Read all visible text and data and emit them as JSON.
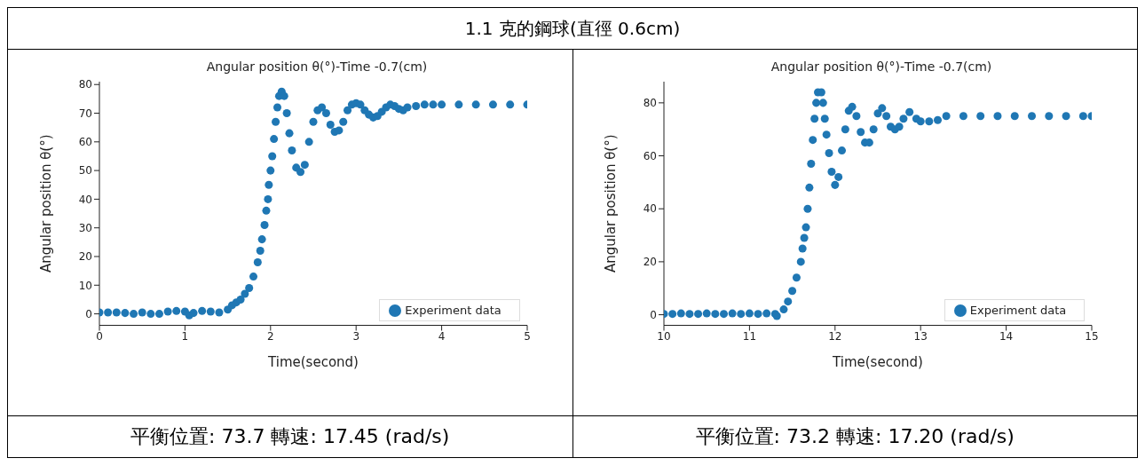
{
  "chart_data": [
    {
      "type": "scatter",
      "title": "Angular position θ(°)-Time -0.7(cm)",
      "xlabel": "Time(second)",
      "ylabel": "Angular position θ(°)",
      "annotations": [
        "1.1 克的鋼球(直徑 0.6cm)",
        "平衡位置: 73.7  轉速: 17.45 (rad/s)"
      ],
      "xlim": [
        0,
        5
      ],
      "ylim": [
        -4,
        81
      ],
      "xticks": [
        0,
        1,
        2,
        3,
        4,
        5
      ],
      "yticks": [
        0,
        10,
        20,
        30,
        40,
        50,
        60,
        70,
        80
      ],
      "legend": "bottom right",
      "marker": "circle",
      "series": [
        {
          "name": "Experiment data",
          "color": "#1f77b4",
          "x": [
            0,
            0.1,
            0.2,
            0.3,
            0.4,
            0.5,
            0.6,
            0.7,
            0.8,
            0.9,
            1.0,
            1.05,
            1.1,
            1.2,
            1.3,
            1.4,
            1.5,
            1.55,
            1.6,
            1.65,
            1.7,
            1.75,
            1.8,
            1.85,
            1.88,
            1.9,
            1.93,
            1.95,
            1.97,
            1.98,
            2.0,
            2.02,
            2.04,
            2.06,
            2.08,
            2.1,
            2.13,
            2.16,
            2.19,
            2.22,
            2.25,
            2.3,
            2.35,
            2.4,
            2.45,
            2.5,
            2.55,
            2.6,
            2.65,
            2.7,
            2.75,
            2.8,
            2.85,
            2.9,
            2.95,
            3.0,
            3.05,
            3.1,
            3.15,
            3.2,
            3.25,
            3.3,
            3.35,
            3.4,
            3.45,
            3.5,
            3.55,
            3.6,
            3.7,
            3.8,
            3.9,
            4.0,
            4.2,
            4.4,
            4.6,
            4.8,
            5.0
          ],
          "values": [
            0.5,
            0.5,
            0.5,
            0.3,
            0,
            0.5,
            0,
            0,
            0.8,
            1,
            0.8,
            -0.5,
            0.3,
            1,
            0.8,
            0.5,
            1.5,
            3,
            4,
            5,
            7,
            9,
            13,
            18,
            22,
            26,
            31,
            36,
            40,
            45,
            50,
            55,
            61,
            67,
            72,
            76,
            77.5,
            76,
            70,
            63,
            57,
            51,
            49.5,
            52,
            60,
            67,
            71,
            72,
            70,
            66,
            63.5,
            64,
            67,
            71,
            73,
            73.5,
            73,
            71,
            69.5,
            68.5,
            69,
            70.5,
            72,
            73,
            72.5,
            71.5,
            71,
            72,
            72.5,
            73,
            73,
            73,
            73,
            73,
            73,
            73,
            73
          ]
        }
      ]
    },
    {
      "type": "scatter",
      "title": "Angular position θ(°)-Time -0.7(cm)",
      "xlabel": "Time(second)",
      "ylabel": "Angular position θ(°)",
      "annotations": [
        "平衡位置: 73.2 轉速: 17.20 (rad/s)"
      ],
      "xlim": [
        10,
        15
      ],
      "ylim": [
        -4,
        88
      ],
      "xticks": [
        10,
        11,
        12,
        13,
        14,
        15
      ],
      "yticks": [
        0,
        20,
        40,
        60,
        80
      ],
      "legend": "bottom right",
      "marker": "circle",
      "series": [
        {
          "name": "Experiment data",
          "color": "#1f77b4",
          "x": [
            10,
            10.1,
            10.2,
            10.3,
            10.4,
            10.5,
            10.6,
            10.7,
            10.8,
            10.9,
            11.0,
            11.1,
            11.2,
            11.3,
            11.32,
            11.4,
            11.45,
            11.5,
            11.55,
            11.6,
            11.62,
            11.64,
            11.66,
            11.68,
            11.7,
            11.72,
            11.74,
            11.76,
            11.78,
            11.8,
            11.84,
            11.86,
            11.88,
            11.9,
            11.93,
            11.96,
            12.0,
            12.04,
            12.08,
            12.12,
            12.16,
            12.2,
            12.25,
            12.3,
            12.35,
            12.4,
            12.45,
            12.5,
            12.55,
            12.6,
            12.65,
            12.7,
            12.75,
            12.8,
            12.87,
            12.95,
            13.0,
            13.1,
            13.2,
            13.3,
            13.5,
            13.7,
            13.9,
            14.1,
            14.3,
            14.5,
            14.7,
            14.9,
            15.0
          ],
          "values": [
            0.3,
            0.3,
            0.5,
            0.3,
            0.3,
            0.5,
            0.3,
            0.3,
            0.5,
            0.3,
            0.5,
            0.3,
            0.5,
            0.3,
            -0.5,
            2,
            5,
            9,
            14,
            20,
            25,
            29,
            33,
            40,
            48,
            57,
            66,
            74,
            80,
            84,
            84,
            80,
            74,
            68,
            61,
            54,
            49,
            52,
            62,
            70,
            77,
            78.5,
            75,
            69,
            65,
            65,
            70,
            76,
            78,
            75,
            71,
            70,
            71,
            74,
            76.5,
            74,
            73,
            73,
            73.5,
            75,
            75,
            75,
            75,
            75,
            75,
            75,
            75,
            75,
            75
          ]
        }
      ]
    }
  ]
}
